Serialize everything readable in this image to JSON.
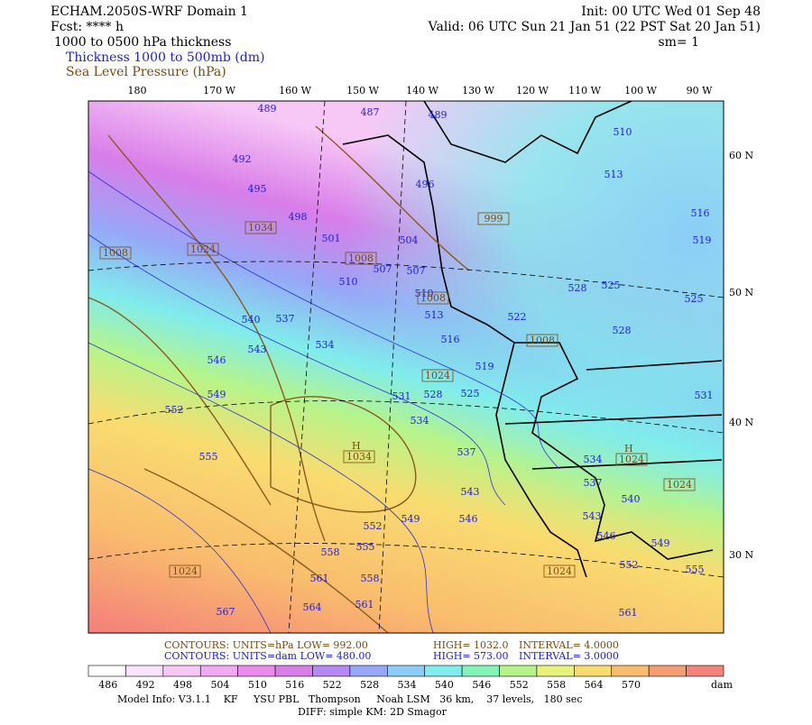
{
  "header": {
    "left": [
      "ECHAM.2050S-WRF Domain 1",
      "Fcst: **** h",
      "1000 to 0500 hPa thickness"
    ],
    "right": [
      "Init: 00 UTC Wed 01 Sep 48",
      "Valid: 06 UTC Sun 21 Jan 51 (22 PST Sat 20 Jan 51)",
      "sm= 1"
    ],
    "legend": [
      "Thickness 1000 to 500mb (dm)",
      "Sea Level Pressure (hPa)"
    ]
  },
  "map": {
    "lon_labels": [
      "180",
      "170 W",
      "160 W",
      "150 W",
      "140 W",
      "130 W",
      "120 W",
      "110 W",
      "100 W",
      "90 W"
    ],
    "lat_labels": [
      "60 N",
      "50 N",
      "40 N",
      "30 N"
    ],
    "thickness_labels": [
      "489",
      "487",
      "489",
      "492",
      "495",
      "496",
      "498",
      "501",
      "504",
      "507",
      "507",
      "510",
      "510",
      "513",
      "516",
      "519",
      "522",
      "525",
      "528",
      "531",
      "534",
      "534",
      "537",
      "537",
      "540",
      "540",
      "543",
      "543",
      "546",
      "546",
      "546",
      "549",
      "549",
      "552",
      "552",
      "552",
      "555",
      "555",
      "555",
      "558",
      "558",
      "561",
      "561",
      "561",
      "564",
      "567",
      "534",
      "537",
      "543",
      "549",
      "510",
      "513",
      "516",
      "519",
      "525",
      "525",
      "528",
      "528",
      "531"
    ],
    "pressure_labels": [
      "1008",
      "1024",
      "1034",
      "1008",
      "1008",
      "999",
      "1008",
      "1024",
      "1034",
      "1024",
      "1024",
      "1024",
      "1024"
    ],
    "high_marker": "H"
  },
  "footer": {
    "contours": [
      "CONTOURS:  UNITS=hPa  LOW=  992.00",
      "HIGH=  1032.0",
      "INTERVAL=  4.0000"
    ],
    "contours2": [
      "CONTOURS:  UNITS=dam  LOW=  480.00",
      "HIGH=  573.00",
      "INTERVAL=  3.0000"
    ],
    "model_info": "Model Info: V3.1.1    KF     YSU PBL   Thompson     Noah LSM   36 km,    37 levels,   180 sec",
    "diff": "DIFF: simple KM: 2D Smagor"
  },
  "colorbar": {
    "labels": [
      "486",
      "492",
      "498",
      "504",
      "510",
      "516",
      "522",
      "528",
      "534",
      "540",
      "546",
      "552",
      "558",
      "564",
      "570"
    ],
    "unit": "dam",
    "colors": [
      "#ffffff",
      "#fbe2fb",
      "#f7c8f6",
      "#f2a9f3",
      "#eb8bf0",
      "#d97de9",
      "#b489f3",
      "#97a7f7",
      "#8ccdf6",
      "#80ecec",
      "#82f4b8",
      "#b6f48a",
      "#e8f27a",
      "#f9dc70",
      "#f9bc6e",
      "#f69d74",
      "#f4837a"
    ]
  }
}
